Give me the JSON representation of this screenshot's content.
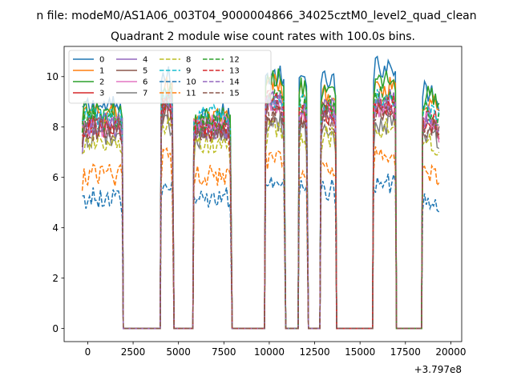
{
  "chart_data": {
    "type": "line",
    "suptitle": "n file: modeM0/AS1A06_003T04_9000004866_34025cztM0_level2_quad_clean",
    "title": "Quadrant 2 module wise count rates with 100.0s bins.",
    "xlabel": "",
    "ylabel": "",
    "x_offset_label": "+3.797e8",
    "xlim": [
      -1300,
      20600
    ],
    "ylim": [
      -0.52,
      11.2
    ],
    "xticks": [
      0,
      2500,
      5000,
      7500,
      10000,
      12500,
      15000,
      17500,
      20000
    ],
    "xtick_labels": [
      "0",
      "2500",
      "5000",
      "7500",
      "10000",
      "12500",
      "15000",
      "17500",
      "20000"
    ],
    "yticks": [
      0,
      2,
      4,
      6,
      8,
      10
    ],
    "ytick_labels": [
      "0",
      "2",
      "4",
      "6",
      "8",
      "10"
    ],
    "bin_seconds": 100,
    "gti_segments": [
      {
        "start": -300,
        "end": 1900
      },
      {
        "start": 4050,
        "end": 4700
      },
      {
        "start": 5850,
        "end": 7900
      },
      {
        "start": 9800,
        "end": 10850
      },
      {
        "start": 11650,
        "end": 12100
      },
      {
        "start": 12850,
        "end": 13650
      },
      {
        "start": 15750,
        "end": 16950
      },
      {
        "start": 18450,
        "end": 19400
      }
    ],
    "off_level": 0,
    "legend_position": "upper left",
    "legend_columns": 4,
    "series": [
      {
        "name": "0",
        "color": "#1f77b4",
        "dash": "solid",
        "segment_levels": [
          8.8,
          10.0,
          8.5,
          10.0,
          9.9,
          9.8,
          10.4,
          9.4
        ]
      },
      {
        "name": "1",
        "color": "#ff7f0e",
        "dash": "solid",
        "segment_levels": [
          8.5,
          9.6,
          8.3,
          9.7,
          9.5,
          9.3,
          9.6,
          9.1
        ]
      },
      {
        "name": "2",
        "color": "#2ca02c",
        "dash": "solid",
        "segment_levels": [
          8.6,
          9.3,
          8.4,
          10.0,
          9.6,
          9.3,
          9.9,
          9.2
        ]
      },
      {
        "name": "3",
        "color": "#d62728",
        "dash": "solid",
        "segment_levels": [
          8.0,
          8.7,
          7.8,
          8.9,
          8.6,
          8.5,
          8.8,
          8.3
        ]
      },
      {
        "name": "4",
        "color": "#9467bd",
        "dash": "solid",
        "segment_levels": [
          7.9,
          9.0,
          7.9,
          9.1,
          8.7,
          8.8,
          9.1,
          8.5
        ]
      },
      {
        "name": "5",
        "color": "#8c564b",
        "dash": "solid",
        "segment_levels": [
          8.1,
          8.6,
          7.9,
          8.5,
          8.4,
          8.6,
          8.6,
          8.0
        ]
      },
      {
        "name": "6",
        "color": "#e377c2",
        "dash": "solid",
        "segment_levels": [
          8.0,
          8.8,
          8.1,
          8.8,
          8.5,
          8.5,
          8.8,
          8.2
        ]
      },
      {
        "name": "7",
        "color": "#7f7f7f",
        "dash": "solid",
        "segment_levels": [
          7.6,
          8.1,
          7.6,
          8.1,
          8.0,
          7.9,
          8.1,
          7.6
        ]
      },
      {
        "name": "8",
        "color": "#bcbd22",
        "dash": "dashed",
        "segment_levels": [
          7.3,
          8.1,
          7.3,
          7.8,
          7.6,
          7.6,
          8.0,
          7.3
        ]
      },
      {
        "name": "9",
        "color": "#17becf",
        "dash": "dashed",
        "segment_levels": [
          8.4,
          9.1,
          8.5,
          9.1,
          8.9,
          8.7,
          9.1,
          8.6
        ]
      },
      {
        "name": "10",
        "color": "#1f77b4",
        "dash": "dashed",
        "segment_levels": [
          5.2,
          5.7,
          5.2,
          6.0,
          5.5,
          5.5,
          5.8,
          5.1
        ]
      },
      {
        "name": "11",
        "color": "#ff7f0e",
        "dash": "dashed",
        "segment_levels": [
          6.1,
          6.8,
          6.1,
          6.7,
          6.4,
          6.4,
          6.9,
          6.1
        ]
      },
      {
        "name": "12",
        "color": "#2ca02c",
        "dash": "dashed",
        "segment_levels": [
          8.2,
          9.1,
          8.1,
          9.4,
          9.0,
          8.9,
          9.2,
          8.5
        ]
      },
      {
        "name": "13",
        "color": "#d62728",
        "dash": "dashed",
        "segment_levels": [
          7.9,
          8.9,
          7.9,
          9.0,
          8.7,
          8.6,
          8.9,
          8.2
        ]
      },
      {
        "name": "14",
        "color": "#9467bd",
        "dash": "dashed",
        "segment_levels": [
          8.1,
          9.0,
          7.9,
          8.9,
          8.6,
          8.6,
          8.8,
          8.2
        ]
      },
      {
        "name": "15",
        "color": "#8c564b",
        "dash": "dashed",
        "segment_levels": [
          7.9,
          8.7,
          7.8,
          8.6,
          8.3,
          8.3,
          8.6,
          8.0
        ]
      }
    ]
  }
}
